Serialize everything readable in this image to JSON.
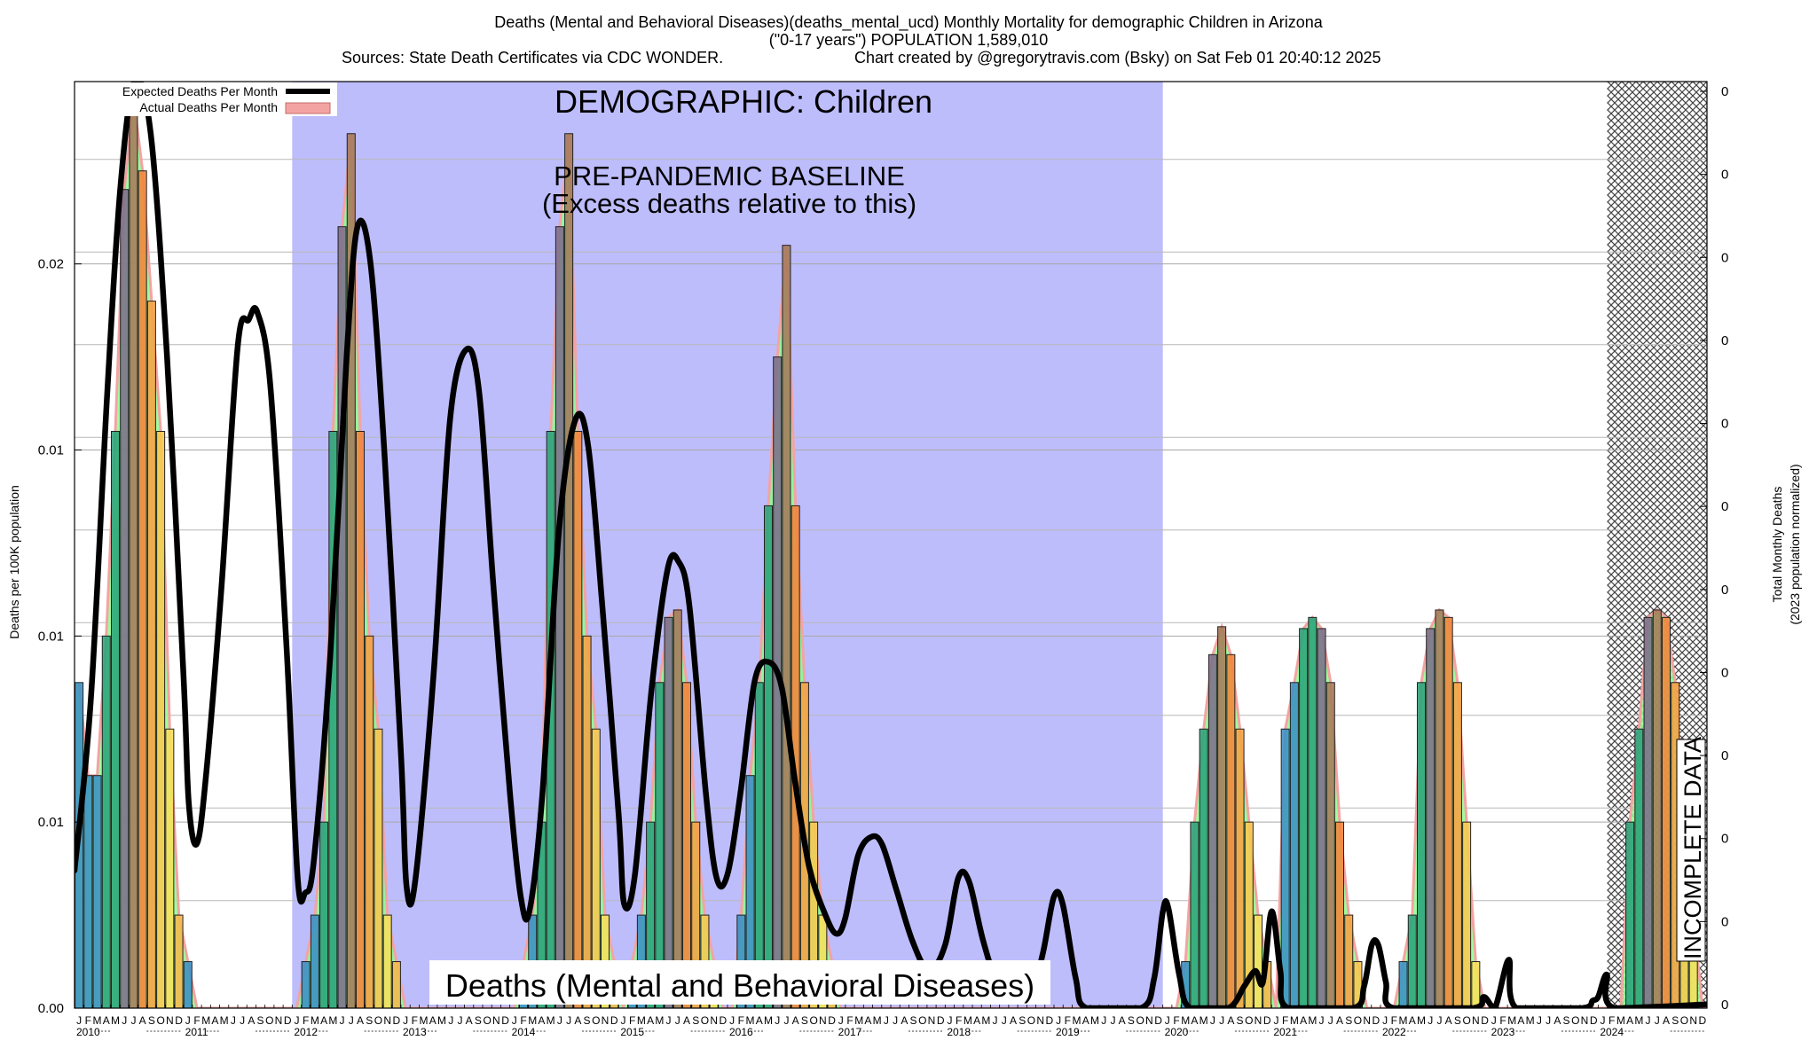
{
  "chart_data": {
    "type": "bar",
    "title_lines": [
      "Deaths (Mental and Behavioral Diseases)(deaths_mental_ucd) Monthly Mortality for demographic Children in Arizona",
      "(\"0-17 years\") POPULATION 1,589,010"
    ],
    "sources_text": "Sources: State Death Certificates via CDC WONDER.",
    "credit_text": "Chart created by @gregorytravis.com (Bsky) on Sat Feb 01 20:40:12 2025",
    "ylabel": "Deaths per 100K population",
    "y2label_lines": [
      "Total Monthly Deaths",
      "(2023 population normalized)"
    ],
    "ylim": [
      0,
      0.0249
    ],
    "yticks": [
      {
        "value": 0,
        "label": "0.00"
      },
      {
        "value": 0.005,
        "label": "0.01"
      },
      {
        "value": 0.01,
        "label": "0.01"
      },
      {
        "value": 0.015,
        "label": "0.01"
      },
      {
        "value": 0.02,
        "label": "0.02"
      }
    ],
    "y2ticks": [
      "0",
      "0",
      "0",
      "0",
      "0",
      "0",
      "0",
      "0",
      "0",
      "0",
      "0",
      "0"
    ],
    "grid": true,
    "annotations": {
      "demographic": "DEMOGRAPHIC: Children",
      "baseline_1": "PRE-PANDEMIC BASELINE",
      "baseline_2": "(Excess deaths relative to this)",
      "cause": "Deaths (Mental and Behavioral Diseases)",
      "incomplete": "INCOMPLETE DATA"
    },
    "baseline_period": {
      "start": "2012-01",
      "end": "2019-12"
    },
    "incomplete_period": {
      "start": "2024-02",
      "end": "2024-12"
    },
    "legend": {
      "position": "top-left",
      "entries": [
        {
          "label": "Expected Deaths Per Month",
          "kind": "line",
          "color": "#000000"
        },
        {
          "label": "Actual Deaths Per Month",
          "kind": "area",
          "color": "#f4a3a3"
        }
      ]
    },
    "x_start": {
      "year": 2010,
      "month": 1
    },
    "month_letters": [
      "J",
      "F",
      "M",
      "A",
      "M",
      "J",
      "J",
      "A",
      "S",
      "O",
      "N",
      "D"
    ],
    "years": [
      "2010",
      "2011",
      "2012",
      "2013",
      "2014",
      "2015",
      "2016",
      "2017",
      "2018",
      "2019",
      "2020",
      "2021",
      "2022",
      "2023",
      "2024"
    ],
    "series": [
      {
        "name": "Actual Deaths Per Month",
        "values": [
          0.00875,
          0.00625,
          0.00625,
          0.01,
          0.0155,
          0.022,
          0.0245,
          0.0225,
          0.019,
          0.0155,
          0.0075,
          0.0025,
          0.00125,
          0,
          0,
          0,
          0,
          0,
          0,
          0,
          0,
          0,
          0,
          0,
          0,
          0.00125,
          0.0025,
          0.005,
          0.0155,
          0.021,
          0.0235,
          0.0155,
          0.01,
          0.0075,
          0.0025,
          0.00125,
          0,
          0,
          0,
          0,
          0,
          0,
          0,
          0,
          0,
          0,
          0,
          0,
          0,
          0.00125,
          0.0025,
          0.005,
          0.0155,
          0.021,
          0.0235,
          0.0155,
          0.01,
          0.0075,
          0.0025,
          0.00125,
          0,
          0.00125,
          0.0025,
          0.005,
          0.00875,
          0.0105,
          0.0107,
          0.00875,
          0.005,
          0.0025,
          0.00125,
          0,
          0,
          0.0025,
          0.00625,
          0.00875,
          0.0135,
          0.0175,
          0.0205,
          0.0135,
          0.00875,
          0.005,
          0.0025,
          0.00125,
          0,
          0,
          0,
          0,
          0,
          0,
          0,
          0,
          0,
          0,
          0,
          0,
          0,
          0,
          0,
          0,
          0,
          0,
          0,
          0,
          0,
          0,
          0,
          0,
          0,
          0,
          0,
          0,
          0,
          0,
          0,
          0,
          0,
          0,
          0,
          0,
          0,
          0,
          0.00125,
          0.005,
          0.0075,
          0.0095,
          0.01025,
          0.0095,
          0.0075,
          0.005,
          0.0025,
          0.00125,
          0,
          0.0075,
          0.00875,
          0.0102,
          0.0105,
          0.0102,
          0.00875,
          0.005,
          0.0025,
          0.00125,
          0,
          0,
          0,
          0,
          0.00125,
          0.0025,
          0.00875,
          0.0102,
          0.0107,
          0.0105,
          0.00875,
          0.005,
          0.00125,
          0,
          0,
          0,
          0,
          0,
          0,
          0,
          0,
          0,
          0,
          0,
          0,
          0,
          0,
          0,
          0,
          0.005,
          0.0075,
          0.0105,
          0.0107,
          0.0105,
          0.00875,
          0.005,
          0.0025,
          0,
          0
        ]
      },
      {
        "name": "Expected Deaths Per Month",
        "points": [
          [
            2010.0,
            0.0037
          ],
          [
            2010.15,
            0.0083
          ],
          [
            2010.3,
            0.0165
          ],
          [
            2010.42,
            0.022
          ],
          [
            2010.55,
            0.0249
          ],
          [
            2010.7,
            0.0235
          ],
          [
            2010.85,
            0.0175
          ],
          [
            2011.0,
            0.009
          ],
          [
            2011.05,
            0.0055
          ],
          [
            2011.12,
            0.0044
          ],
          [
            2011.2,
            0.006
          ],
          [
            2011.35,
            0.0113
          ],
          [
            2011.5,
            0.0178
          ],
          [
            2011.6,
            0.0185
          ],
          [
            2011.68,
            0.0187
          ],
          [
            2011.8,
            0.0167
          ],
          [
            2011.95,
            0.0096
          ],
          [
            2012.05,
            0.0035
          ],
          [
            2012.12,
            0.0031
          ],
          [
            2012.2,
            0.004
          ],
          [
            2012.35,
            0.0095
          ],
          [
            2012.5,
            0.0175
          ],
          [
            2012.6,
            0.021
          ],
          [
            2012.72,
            0.02
          ],
          [
            2012.85,
            0.0148
          ],
          [
            2013.0,
            0.0068
          ],
          [
            2013.05,
            0.0033
          ],
          [
            2013.13,
            0.0034
          ],
          [
            2013.3,
            0.009
          ],
          [
            2013.45,
            0.0158
          ],
          [
            2013.6,
            0.0177
          ],
          [
            2013.72,
            0.0165
          ],
          [
            2013.85,
            0.0113
          ],
          [
            2014.0,
            0.0058
          ],
          [
            2014.1,
            0.003
          ],
          [
            2014.18,
            0.0026
          ],
          [
            2014.3,
            0.0058
          ],
          [
            2014.45,
            0.0128
          ],
          [
            2014.6,
            0.0158
          ],
          [
            2014.72,
            0.0151
          ],
          [
            2014.85,
            0.0108
          ],
          [
            2015.0,
            0.0052
          ],
          [
            2015.05,
            0.0028
          ],
          [
            2015.15,
            0.0036
          ],
          [
            2015.3,
            0.0085
          ],
          [
            2015.45,
            0.0118
          ],
          [
            2015.55,
            0.012
          ],
          [
            2015.65,
            0.0108
          ],
          [
            2015.8,
            0.0058
          ],
          [
            2015.9,
            0.0035
          ],
          [
            2016.0,
            0.0036
          ],
          [
            2016.12,
            0.0058
          ],
          [
            2016.25,
            0.0088
          ],
          [
            2016.38,
            0.0093
          ],
          [
            2016.5,
            0.0086
          ],
          [
            2016.62,
            0.0061
          ],
          [
            2016.75,
            0.0038
          ],
          [
            2016.9,
            0.0025
          ],
          [
            2017.0,
            0.002
          ],
          [
            2017.08,
            0.0024
          ],
          [
            2017.2,
            0.0041
          ],
          [
            2017.32,
            0.0046
          ],
          [
            2017.42,
            0.0044
          ],
          [
            2017.55,
            0.0032
          ],
          [
            2017.7,
            0.0018
          ],
          [
            2017.85,
            0.001
          ],
          [
            2018.0,
            0.0017
          ],
          [
            2018.12,
            0.0035
          ],
          [
            2018.22,
            0.0034
          ],
          [
            2018.35,
            0.0018
          ],
          [
            2018.5,
            0.0005
          ],
          [
            2018.65,
            0.0003
          ],
          [
            2018.8,
            0.0005
          ],
          [
            2018.9,
            0.0015
          ],
          [
            2019.0,
            0.003
          ],
          [
            2019.08,
            0.0028
          ],
          [
            2019.2,
            0.0008
          ],
          [
            2019.3,
            0
          ],
          [
            2019.8,
            0
          ],
          [
            2019.92,
            0.0008
          ],
          [
            2020.0,
            0.0026
          ],
          [
            2020.05,
            0.0027
          ],
          [
            2020.15,
            0.0009
          ],
          [
            2020.25,
            0
          ],
          [
            2020.6,
            0
          ],
          [
            2020.75,
            0.0006
          ],
          [
            2020.85,
            0.001
          ],
          [
            2020.92,
            0.0007
          ],
          [
            2021.0,
            0.0026
          ],
          [
            2021.08,
            0.001
          ],
          [
            2021.15,
            0
          ],
          [
            2021.75,
            0
          ],
          [
            2021.85,
            0.0006
          ],
          [
            2021.92,
            0.0017
          ],
          [
            2021.98,
            0.0017
          ],
          [
            2022.05,
            0.0007
          ],
          [
            2022.12,
            0
          ],
          [
            2022.85,
            0
          ],
          [
            2022.95,
            0.0003
          ],
          [
            2023.05,
            0
          ],
          [
            2023.18,
            0.0013
          ],
          [
            2023.25,
            0
          ],
          [
            2023.85,
            0
          ],
          [
            2023.95,
            0.0002
          ],
          [
            2024.0,
            0.0003
          ],
          [
            2024.08,
            0.0009
          ],
          [
            2024.15,
            0
          ],
          [
            2025.0,
            0.0001
          ]
        ]
      }
    ]
  }
}
